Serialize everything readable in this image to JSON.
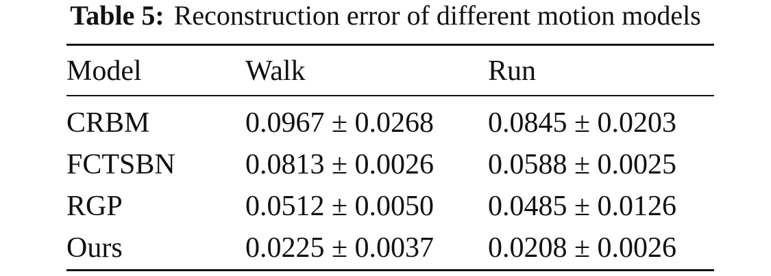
{
  "caption": {
    "label": "Table 5:",
    "text": "Reconstruction error of different motion models"
  },
  "table": {
    "header": [
      "Model",
      "Walk",
      "Run"
    ],
    "rows": [
      [
        "CRBM",
        "0.0967 ± 0.0268",
        "0.0845 ± 0.0203"
      ],
      [
        "FCTSBN",
        "0.0813 ± 0.0026",
        "0.0588 ± 0.0025"
      ],
      [
        "RGP",
        "0.0512 ± 0.0050",
        "0.0485 ± 0.0126"
      ],
      [
        "Ours",
        "0.0225 ± 0.0037",
        "0.0208 ± 0.0026"
      ]
    ]
  }
}
